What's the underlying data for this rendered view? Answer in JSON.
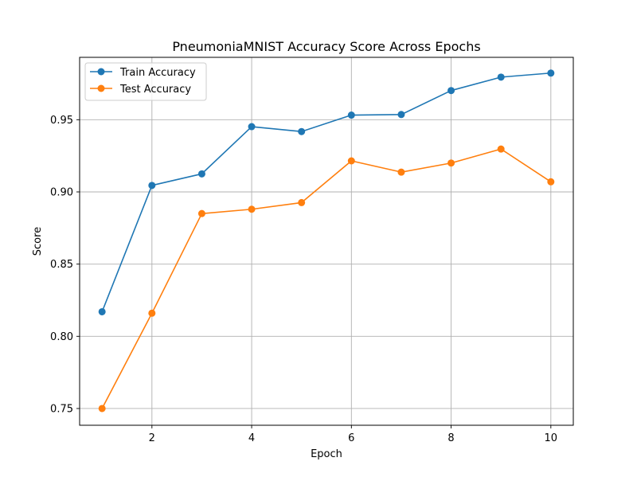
{
  "chart_data": {
    "type": "line",
    "title": "PneumoniaMNIST Accuracy Score Across Epochs",
    "xlabel": "Epoch",
    "ylabel": "Score",
    "x": [
      1,
      2,
      3,
      4,
      5,
      6,
      7,
      8,
      9,
      10
    ],
    "xlim": [
      0.55,
      10.45
    ],
    "ylim": [
      0.7384,
      0.9932
    ],
    "xticks": [
      2,
      4,
      6,
      8,
      10
    ],
    "yticks": [
      0.75,
      0.8,
      0.85,
      0.9,
      0.95
    ],
    "ytick_labels": [
      "0.75",
      "0.80",
      "0.85",
      "0.90",
      "0.95"
    ],
    "grid": true,
    "legend": "top-left",
    "series": [
      {
        "name": "Train Accuracy",
        "color": "#1f77b4",
        "values": [
          0.817,
          0.9045,
          0.9125,
          0.9452,
          0.9418,
          0.9532,
          0.9536,
          0.9702,
          0.9795,
          0.9823
        ]
      },
      {
        "name": "Test Accuracy",
        "color": "#ff7f0e",
        "values": [
          0.75,
          0.816,
          0.885,
          0.888,
          0.8926,
          0.9215,
          0.9137,
          0.92,
          0.9297,
          0.907
        ]
      }
    ]
  }
}
